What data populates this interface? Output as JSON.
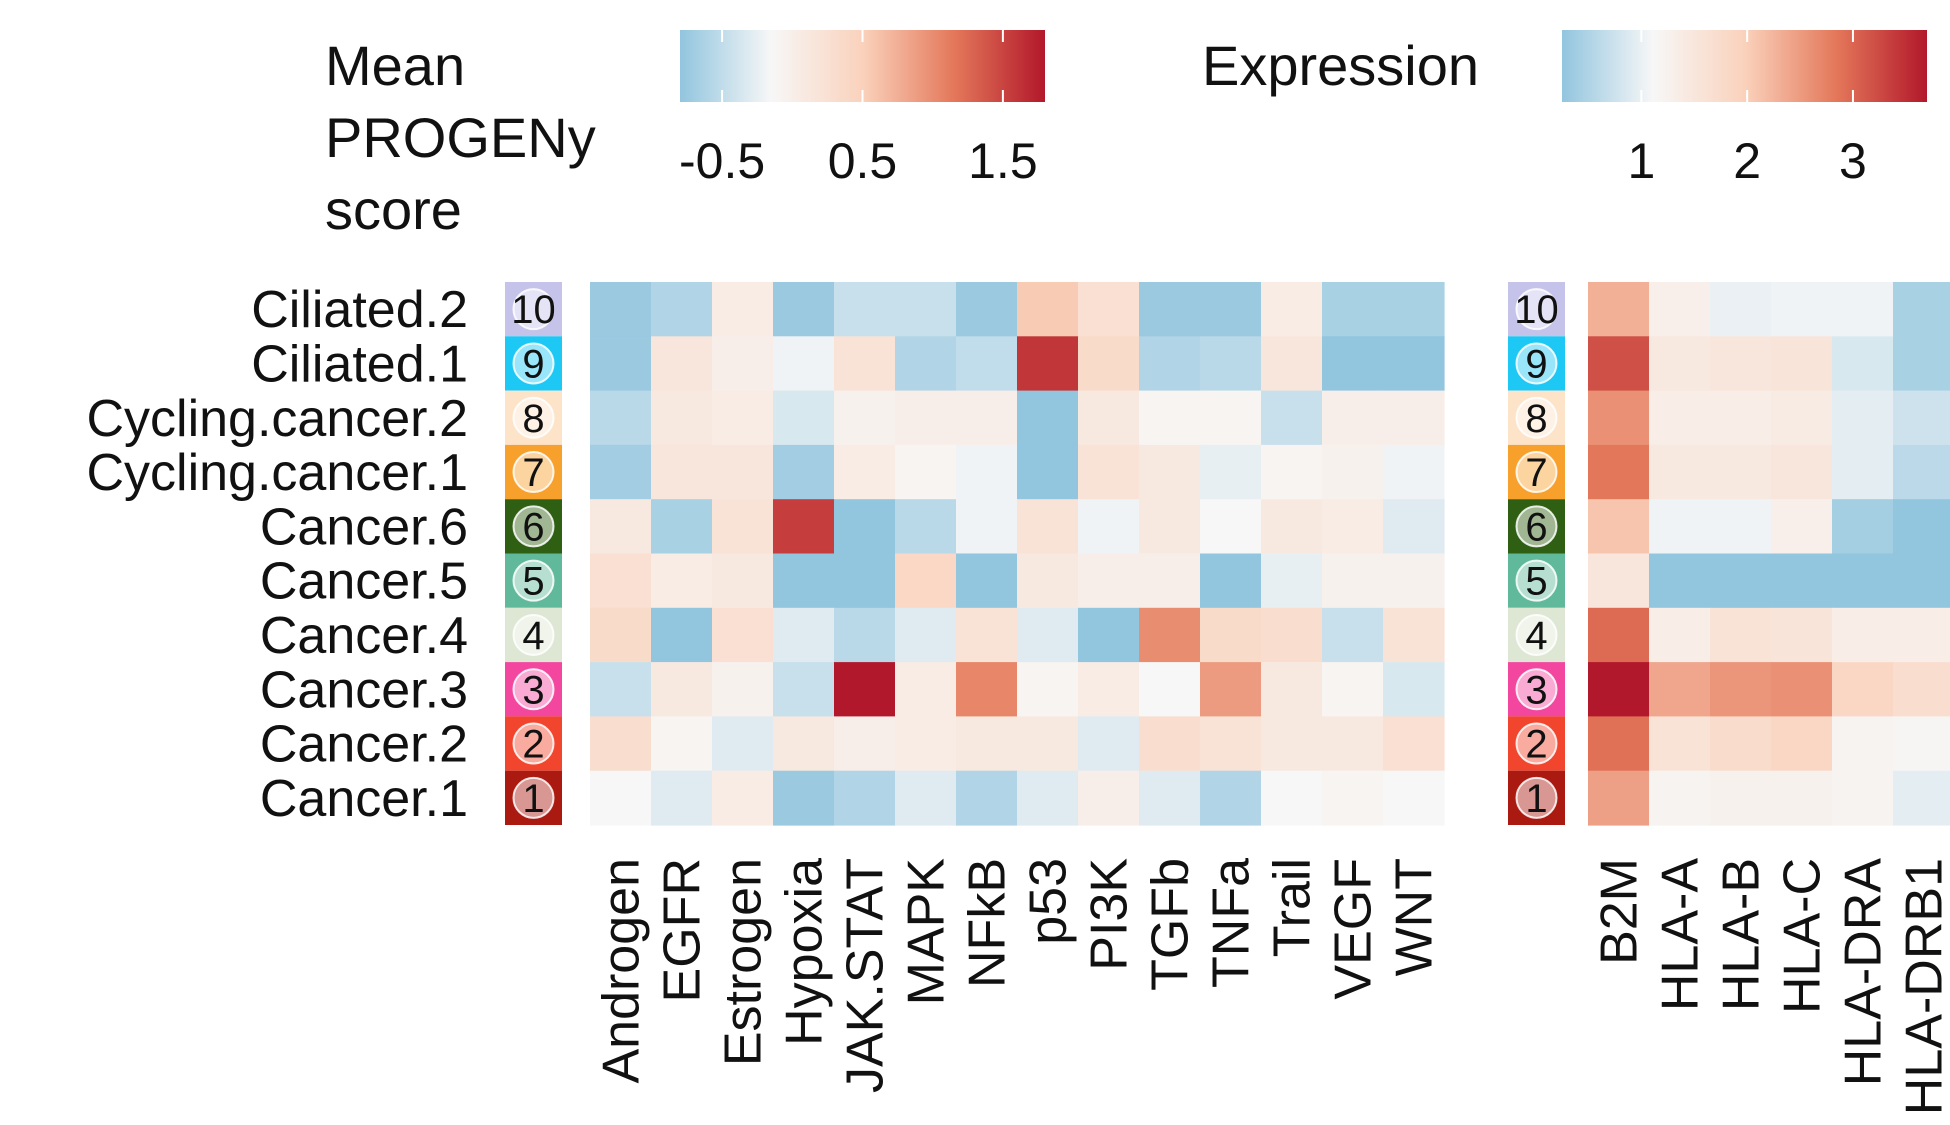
{
  "chart_data": {
    "type": "heatmap",
    "rows": [
      "Ciliated.2",
      "Ciliated.1",
      "Cycling.cancer.2",
      "Cycling.cancer.1",
      "Cancer.6",
      "Cancer.5",
      "Cancer.4",
      "Cancer.3",
      "Cancer.2",
      "Cancer.1"
    ],
    "row_badges": [
      {
        "label": "10",
        "color": "#c5c3ea"
      },
      {
        "label": "9",
        "color": "#1ec8f5"
      },
      {
        "label": "8",
        "color": "#fde3c8"
      },
      {
        "label": "7",
        "color": "#f7a12c"
      },
      {
        "label": "6",
        "color": "#2f5f12"
      },
      {
        "label": "5",
        "color": "#5fb99a"
      },
      {
        "label": "4",
        "color": "#dde7d3"
      },
      {
        "label": "3",
        "color": "#f2469f"
      },
      {
        "label": "2",
        "color": "#f2452d"
      },
      {
        "label": "1",
        "color": "#aa1a11"
      }
    ],
    "heatmaps": [
      {
        "legend_title": "Mean PROGENy score",
        "columns": [
          "Androgen",
          "EGFR",
          "Estrogen",
          "Hypoxia",
          "JAK.STAT",
          "MAPK",
          "NFkB",
          "p53",
          "PI3K",
          "TGFb",
          "TNFa",
          "Trail",
          "VEGF",
          "WNT"
        ],
        "color_range": [
          -0.8,
          1.8
        ],
        "legend_ticks": [
          "-0.5",
          "0.5",
          "1.5"
        ],
        "legend_tick_values": [
          -0.5,
          0.5,
          1.5
        ],
        "values": [
          [
            -0.75,
            -0.6,
            0.05,
            -0.75,
            -0.45,
            -0.45,
            -0.75,
            0.55,
            0.25,
            -0.75,
            -0.75,
            0.05,
            -0.65,
            -0.65
          ],
          [
            -0.75,
            0.15,
            0.0,
            -0.2,
            0.2,
            -0.6,
            -0.5,
            1.6,
            0.35,
            -0.6,
            -0.55,
            0.15,
            -0.8,
            -0.8
          ],
          [
            -0.55,
            0.1,
            0.05,
            -0.35,
            -0.05,
            0.0,
            0.0,
            -0.8,
            0.1,
            -0.1,
            -0.1,
            -0.45,
            0.0,
            0.0
          ],
          [
            -0.7,
            0.15,
            0.15,
            -0.7,
            0.05,
            -0.1,
            -0.2,
            -0.8,
            0.2,
            0.1,
            -0.25,
            -0.1,
            -0.05,
            -0.2
          ],
          [
            0.1,
            -0.65,
            0.2,
            1.55,
            -0.8,
            -0.55,
            -0.2,
            0.2,
            -0.2,
            0.1,
            -0.15,
            0.1,
            0.05,
            -0.3
          ],
          [
            0.25,
            0.05,
            0.1,
            -0.8,
            -0.8,
            0.4,
            -0.8,
            0.1,
            0.0,
            0.0,
            -0.8,
            -0.25,
            -0.05,
            -0.05
          ],
          [
            0.35,
            -0.8,
            0.25,
            -0.3,
            -0.55,
            -0.3,
            0.2,
            -0.3,
            -0.8,
            1.0,
            0.35,
            0.3,
            -0.45,
            0.2
          ],
          [
            -0.45,
            0.1,
            -0.05,
            -0.45,
            1.8,
            0.05,
            1.05,
            -0.1,
            0.05,
            -0.15,
            0.9,
            0.1,
            -0.1,
            -0.35
          ],
          [
            0.3,
            -0.1,
            -0.3,
            0.1,
            0.0,
            0.05,
            0.1,
            0.1,
            -0.3,
            0.3,
            0.2,
            0.1,
            0.1,
            0.25
          ],
          [
            -0.15,
            -0.3,
            0.05,
            -0.75,
            -0.6,
            -0.3,
            -0.6,
            -0.3,
            0.0,
            -0.3,
            -0.6,
            -0.15,
            -0.1,
            -0.15
          ]
        ]
      },
      {
        "legend_title": "Expression",
        "columns": [
          "B2M",
          "HLA-A",
          "HLA-B",
          "HLA-C",
          "HLA-DRA",
          "HLA-DRB1"
        ],
        "color_range": [
          0.25,
          3.7
        ],
        "legend_ticks": [
          "1",
          "2",
          "3"
        ],
        "legend_tick_values": [
          1,
          2,
          3
        ],
        "values": [
          [
            2.3,
            1.3,
            1.0,
            1.05,
            1.05,
            0.45
          ],
          [
            3.2,
            1.45,
            1.5,
            1.55,
            0.85,
            0.45
          ],
          [
            2.6,
            1.35,
            1.35,
            1.4,
            0.95,
            0.75
          ],
          [
            2.85,
            1.45,
            1.45,
            1.5,
            0.95,
            0.6
          ],
          [
            2.1,
            1.05,
            1.05,
            1.3,
            0.4,
            0.25
          ],
          [
            1.5,
            0.25,
            0.25,
            0.25,
            0.25,
            0.25
          ],
          [
            2.95,
            1.35,
            1.6,
            1.55,
            1.35,
            1.35
          ],
          [
            3.7,
            2.4,
            2.55,
            2.6,
            1.85,
            1.7
          ],
          [
            2.9,
            1.6,
            1.75,
            1.85,
            1.2,
            1.15
          ],
          [
            2.45,
            1.2,
            1.25,
            1.25,
            1.2,
            0.95
          ]
        ]
      }
    ]
  }
}
